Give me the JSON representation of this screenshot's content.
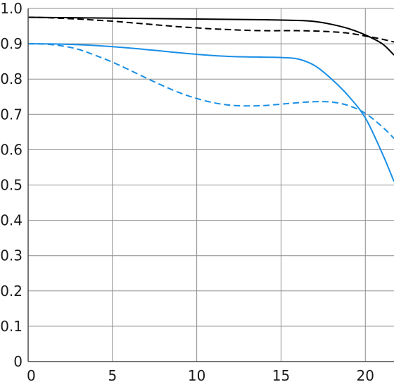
{
  "chart_data": {
    "type": "line",
    "title": "",
    "xlabel": "",
    "ylabel": "",
    "xlim": [
      0,
      21.7
    ],
    "ylim": [
      0,
      1.0
    ],
    "grid": true,
    "x_ticks": [
      "0",
      "5",
      "10",
      "15",
      "20"
    ],
    "y_ticks": [
      "0",
      "0.1",
      "0.2",
      "0.3",
      "0.4",
      "0.5",
      "0.6",
      "0.7",
      "0.8",
      "0.9",
      "1.0"
    ],
    "series": [
      {
        "color": "#000000",
        "dash": "solid",
        "x": [
          0,
          2,
          4,
          6,
          8,
          10,
          12,
          14,
          16,
          17,
          18,
          19,
          20,
          21,
          21.7
        ],
        "y": [
          0.975,
          0.974,
          0.973,
          0.972,
          0.971,
          0.97,
          0.969,
          0.968,
          0.966,
          0.963,
          0.955,
          0.943,
          0.925,
          0.9,
          0.868
        ]
      },
      {
        "color": "#000000",
        "dash": "dashed",
        "x": [
          0,
          1,
          2,
          3,
          4,
          5,
          6,
          7,
          8,
          9,
          10,
          11,
          12,
          13,
          14,
          15,
          16,
          17,
          18,
          19,
          20,
          21,
          21.7
        ],
        "y": [
          0.975,
          0.974,
          0.972,
          0.97,
          0.967,
          0.964,
          0.96,
          0.956,
          0.952,
          0.948,
          0.945,
          0.942,
          0.94,
          0.938,
          0.937,
          0.937,
          0.937,
          0.936,
          0.934,
          0.93,
          0.922,
          0.913,
          0.905
        ]
      },
      {
        "color": "#1a8fe6",
        "dash": "solid",
        "x": [
          0,
          2,
          4,
          6,
          8,
          10,
          12,
          14,
          15,
          16,
          17,
          18,
          19,
          20,
          21,
          21.7
        ],
        "y": [
          0.9,
          0.899,
          0.895,
          0.888,
          0.879,
          0.87,
          0.864,
          0.862,
          0.861,
          0.857,
          0.838,
          0.8,
          0.752,
          0.69,
          0.59,
          0.51
        ]
      },
      {
        "color": "#1a8fe6",
        "dash": "dashed",
        "x": [
          0,
          1,
          2,
          3,
          4,
          5,
          6,
          7,
          8,
          9,
          10,
          11,
          12,
          13,
          14,
          15,
          16,
          17,
          18,
          19,
          20,
          21,
          21.7
        ],
        "y": [
          0.9,
          0.899,
          0.894,
          0.884,
          0.867,
          0.848,
          0.826,
          0.803,
          0.781,
          0.761,
          0.745,
          0.733,
          0.726,
          0.724,
          0.725,
          0.729,
          0.733,
          0.736,
          0.735,
          0.725,
          0.703,
          0.665,
          0.632
        ]
      }
    ]
  }
}
